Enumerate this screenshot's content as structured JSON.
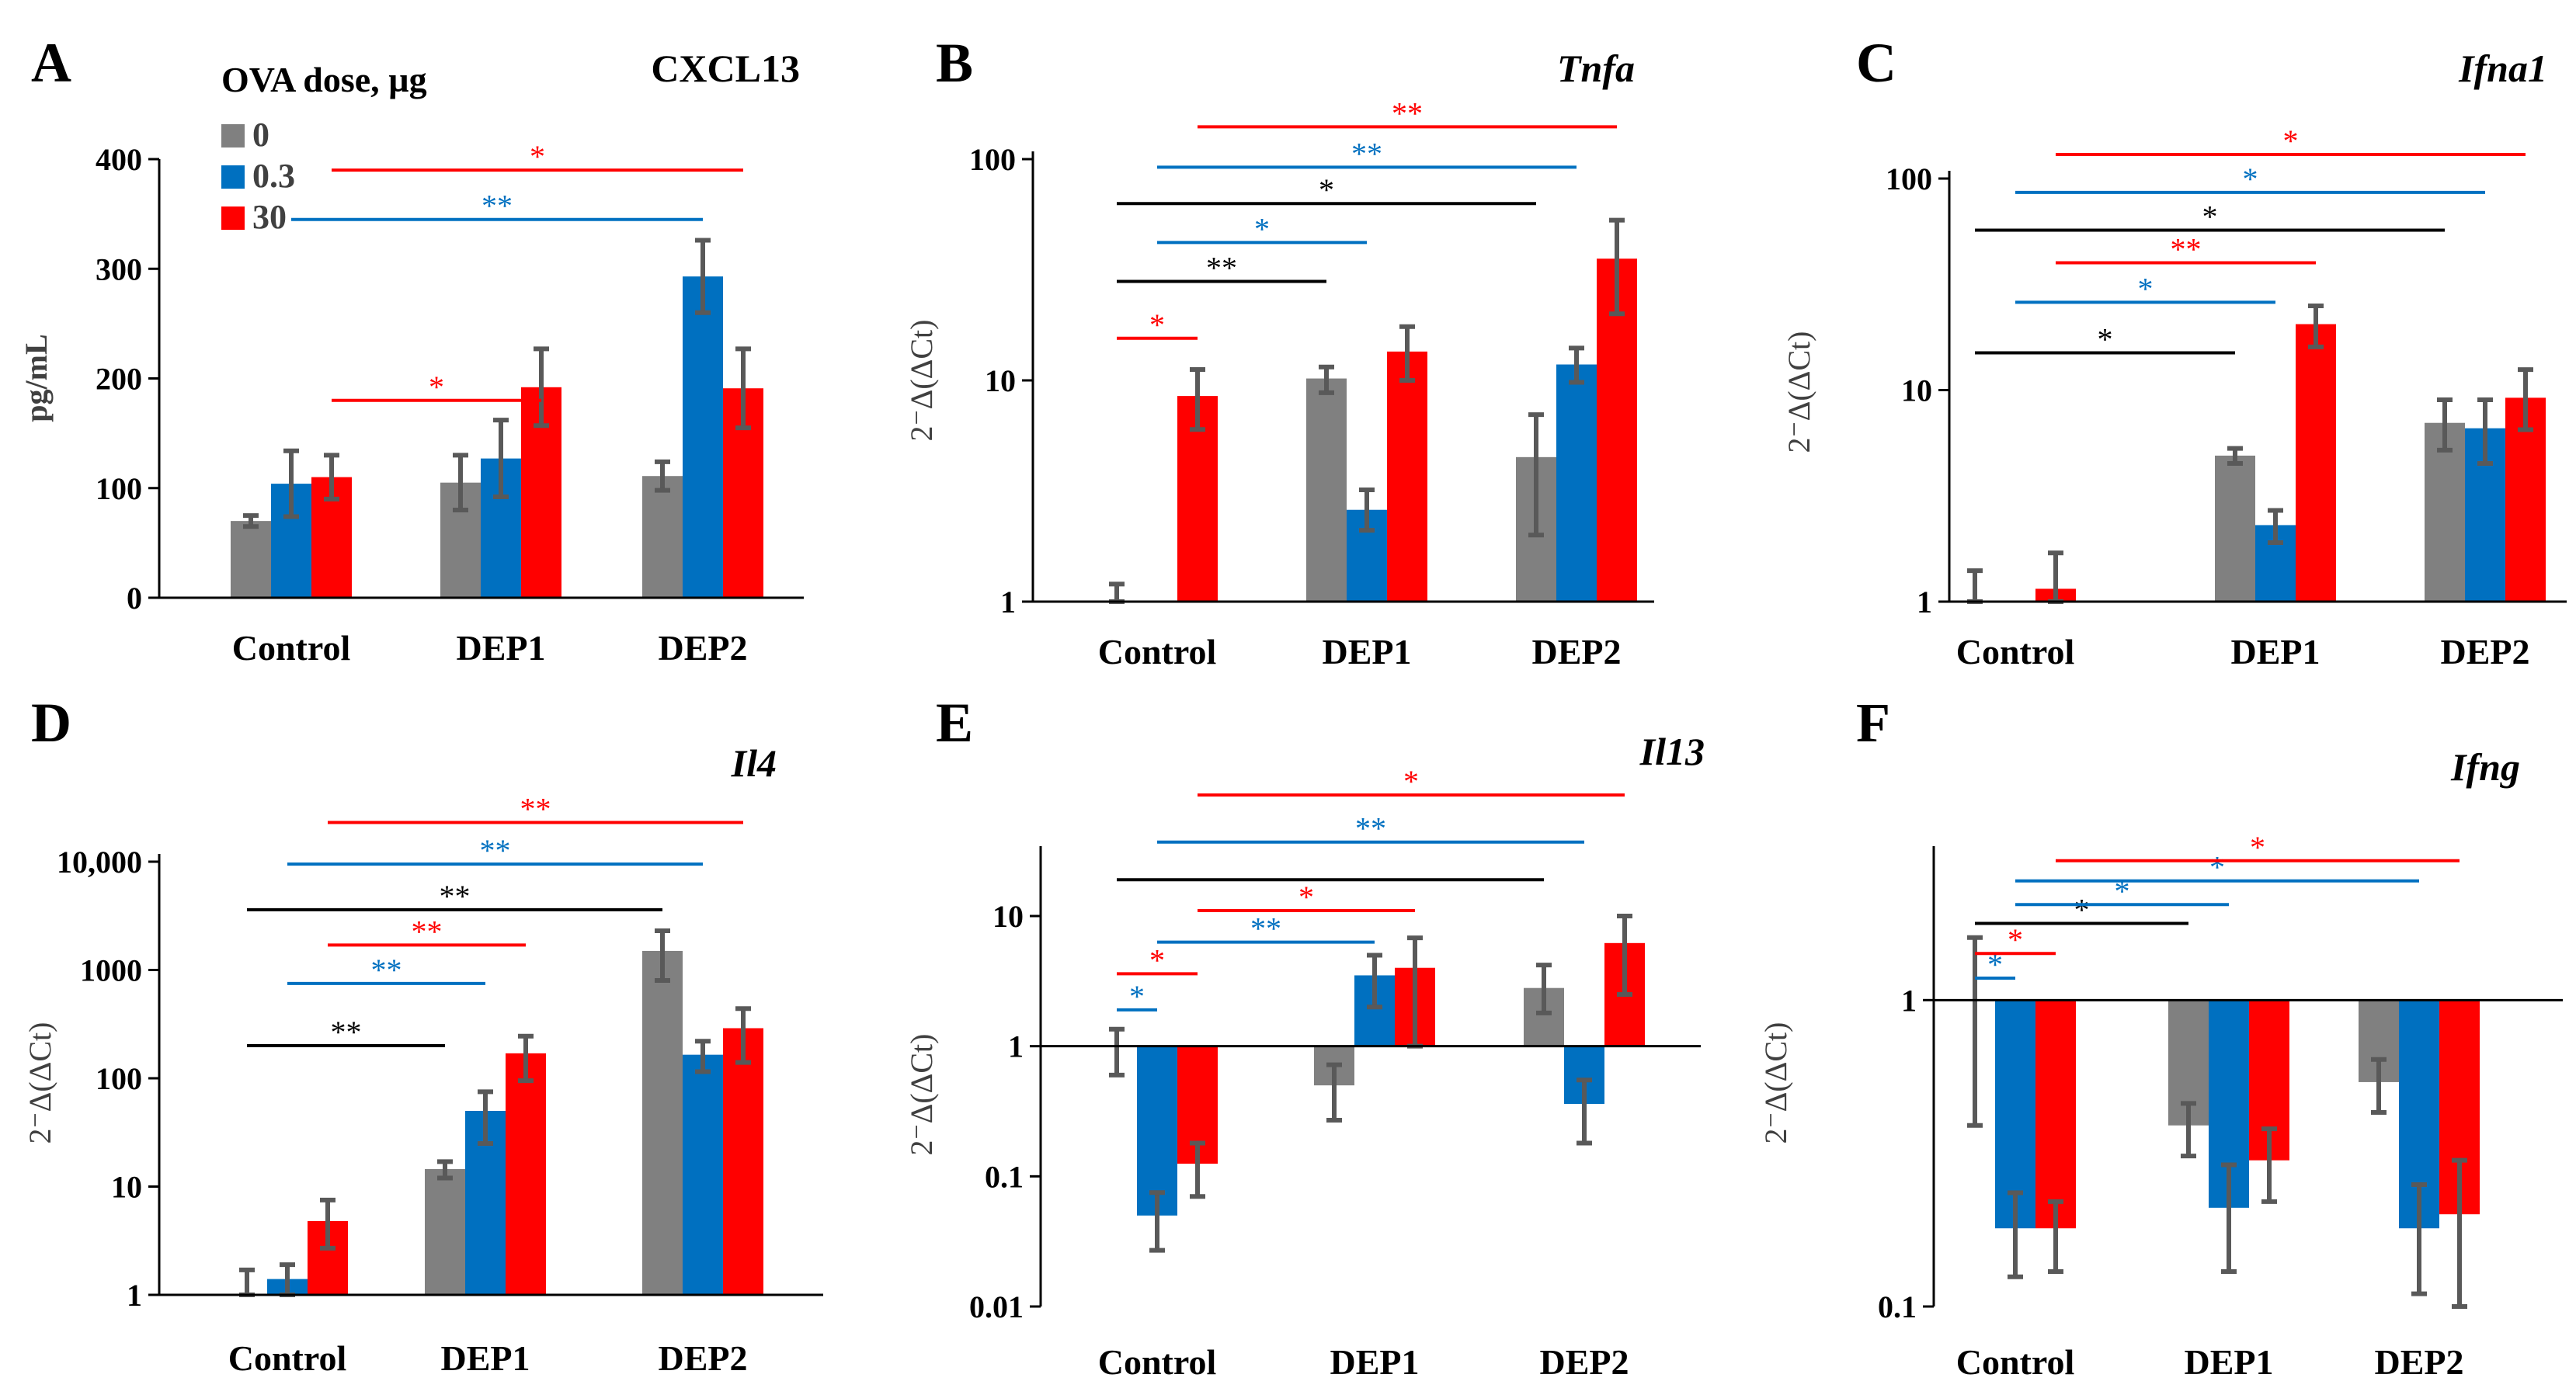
{
  "legend": {
    "title": "OVA dose, µg",
    "entries": [
      {
        "label": "0",
        "color": "#808080"
      },
      {
        "label": "0.3",
        "color": "#0070C0"
      },
      {
        "label": "30",
        "color": "#FF0000"
      }
    ]
  },
  "colors": {
    "gray": "#808080",
    "blue": "#0070C0",
    "red": "#FF0000",
    "sig_gray": "#000000",
    "error": "#595959"
  },
  "chart_data": [
    {
      "panel": "A",
      "type": "bar",
      "title": "CXCL13",
      "title_style": "bold",
      "categories": [
        "Control",
        "DEP1",
        "DEP2"
      ],
      "ylabel": "pg/mL",
      "scale": "linear",
      "ylim": [
        0,
        400
      ],
      "yticks": [
        0,
        100,
        200,
        300,
        400
      ],
      "ytick_labels": [
        "0",
        "100",
        "200",
        "300",
        "400"
      ],
      "series": [
        {
          "name": "0",
          "values": [
            70,
            105,
            111
          ],
          "errors": [
            5,
            25,
            13
          ]
        },
        {
          "name": "0.3",
          "values": [
            104,
            127,
            293
          ],
          "errors": [
            30,
            35,
            33
          ]
        },
        {
          "name": "30",
          "values": [
            110,
            192,
            191
          ],
          "errors": [
            20,
            35,
            36
          ]
        }
      ],
      "significance": [
        {
          "from": [
            0,
            "30"
          ],
          "to": [
            1,
            "30"
          ],
          "label": "*",
          "color": "red",
          "level": 180
        },
        {
          "from": [
            0,
            "0.3"
          ],
          "to": [
            2,
            "0.3"
          ],
          "label": "**",
          "color": "blue",
          "level": 345
        },
        {
          "from": [
            0,
            "30"
          ],
          "to": [
            2,
            "30"
          ],
          "label": "*",
          "color": "red",
          "level": 390
        }
      ]
    },
    {
      "panel": "B",
      "type": "bar",
      "title": "Tnfa",
      "title_style": "italic",
      "categories": [
        "Control",
        "DEP1",
        "DEP2"
      ],
      "ylabel": "2⁻Δ(ΔCt)",
      "scale": "log",
      "ylim": [
        1,
        100
      ],
      "yticks": [
        1,
        10,
        100
      ],
      "ytick_labels": [
        "1",
        "10",
        "100"
      ],
      "series": [
        {
          "name": "0",
          "values": [
            1.0,
            10.2,
            4.5
          ],
          "err_lo": [
            1.0,
            8.8,
            2.0
          ],
          "err_hi": [
            1.2,
            11.5,
            7.0
          ]
        },
        {
          "name": "0.3",
          "values": [
            1.0,
            2.6,
            11.8
          ],
          "err_lo": [
            1.0,
            2.1,
            9.8
          ],
          "err_hi": [
            1.0,
            3.2,
            14.0
          ]
        },
        {
          "name": "30",
          "values": [
            8.5,
            13.5,
            35.5
          ],
          "err_lo": [
            6.0,
            10.0,
            20.0
          ],
          "err_hi": [
            11.2,
            17.5,
            53.0
          ]
        }
      ],
      "significance": [
        {
          "from": [
            0,
            "0"
          ],
          "to": [
            0,
            "30"
          ],
          "label": "*",
          "color": "red",
          "level": 15.5
        },
        {
          "from": [
            0,
            "0"
          ],
          "to": [
            1,
            "0"
          ],
          "label": "**",
          "color": "black",
          "level": 28
        },
        {
          "from": [
            0,
            "0.3"
          ],
          "to": [
            1,
            "0.3"
          ],
          "label": "*",
          "color": "blue",
          "level": 42
        },
        {
          "from": [
            0,
            "0"
          ],
          "to": [
            2,
            "0"
          ],
          "label": "*",
          "color": "black",
          "level": 63
        },
        {
          "from": [
            0,
            "0.3"
          ],
          "to": [
            2,
            "0.3"
          ],
          "label": "**",
          "color": "blue",
          "level": 92
        },
        {
          "from": [
            0,
            "30"
          ],
          "to": [
            2,
            "30"
          ],
          "label": "**",
          "color": "red",
          "level": 140
        }
      ]
    },
    {
      "panel": "C",
      "type": "bar",
      "title": "Ifna1",
      "title_style": "italic",
      "categories": [
        "Control",
        "DEP1",
        "DEP2"
      ],
      "ylabel": "2⁻Δ(ΔCt)",
      "scale": "log",
      "ylim": [
        1,
        100
      ],
      "yticks": [
        1,
        10,
        100
      ],
      "ytick_labels": [
        "1",
        "10",
        "100"
      ],
      "series": [
        {
          "name": "0",
          "values": [
            1.0,
            4.9,
            7.0
          ],
          "err_lo": [
            1.0,
            4.5,
            5.2
          ],
          "err_hi": [
            1.4,
            5.3,
            9.0
          ]
        },
        {
          "name": "0.3",
          "values": [
            1.0,
            2.3,
            6.6
          ],
          "err_lo": [
            1.0,
            1.9,
            4.5
          ],
          "err_hi": [
            1.0,
            2.7,
            9.0
          ]
        },
        {
          "name": "30",
          "values": [
            1.15,
            20.5,
            9.2
          ],
          "err_lo": [
            1.0,
            16.0,
            6.5
          ],
          "err_hi": [
            1.7,
            25.0,
            12.5
          ]
        }
      ],
      "significance": [
        {
          "from": [
            0,
            "0"
          ],
          "to": [
            1,
            "0"
          ],
          "label": "*",
          "color": "black",
          "level": 15
        },
        {
          "from": [
            0,
            "0.3"
          ],
          "to": [
            1,
            "0.3"
          ],
          "label": "*",
          "color": "blue",
          "level": 26
        },
        {
          "from": [
            0,
            "30"
          ],
          "to": [
            1,
            "30"
          ],
          "label": "**",
          "color": "red",
          "level": 40
        },
        {
          "from": [
            0,
            "0"
          ],
          "to": [
            2,
            "0"
          ],
          "label": "*",
          "color": "black",
          "level": 57
        },
        {
          "from": [
            0,
            "0.3"
          ],
          "to": [
            2,
            "0.3"
          ],
          "label": "*",
          "color": "blue",
          "level": 86
        },
        {
          "from": [
            0,
            "30"
          ],
          "to": [
            2,
            "30"
          ],
          "label": "*",
          "color": "red",
          "level": 130
        }
      ]
    },
    {
      "panel": "D",
      "type": "bar",
      "title": "Il4",
      "title_style": "italic",
      "categories": [
        "Control",
        "DEP1",
        "DEP2"
      ],
      "ylabel": "2⁻Δ(ΔCt)",
      "scale": "log",
      "ylim": [
        1,
        10000
      ],
      "yticks": [
        1,
        10,
        100,
        1000,
        10000
      ],
      "ytick_labels": [
        "1",
        "10",
        "100",
        "1000",
        "10,000"
      ],
      "series": [
        {
          "name": "0",
          "values": [
            1.0,
            14.5,
            1500
          ],
          "err_lo": [
            1.0,
            12.0,
            800
          ],
          "err_hi": [
            1.7,
            17.0,
            2300
          ]
        },
        {
          "name": "0.3",
          "values": [
            1.4,
            50,
            165
          ],
          "err_lo": [
            1.0,
            25,
            115
          ],
          "err_hi": [
            1.9,
            75,
            220
          ]
        },
        {
          "name": "30",
          "values": [
            4.8,
            170,
            290
          ],
          "err_lo": [
            2.7,
            95,
            140
          ],
          "err_hi": [
            7.5,
            245,
            440
          ]
        }
      ],
      "significance": [
        {
          "from": [
            0,
            "0"
          ],
          "to": [
            1,
            "0"
          ],
          "label": "**",
          "color": "black",
          "level": 200
        },
        {
          "from": [
            0,
            "0.3"
          ],
          "to": [
            1,
            "0.3"
          ],
          "label": "**",
          "color": "blue",
          "level": 750
        },
        {
          "from": [
            0,
            "30"
          ],
          "to": [
            1,
            "30"
          ],
          "label": "**",
          "color": "red",
          "level": 1700
        },
        {
          "from": [
            0,
            "0"
          ],
          "to": [
            2,
            "0"
          ],
          "label": "**",
          "color": "black",
          "level": 3600
        },
        {
          "from": [
            0,
            "0.3"
          ],
          "to": [
            2,
            "0.3"
          ],
          "label": "**",
          "color": "blue",
          "level": 9500
        },
        {
          "from": [
            0,
            "30"
          ],
          "to": [
            2,
            "30"
          ],
          "label": "**",
          "color": "red",
          "level": 23000
        }
      ]
    },
    {
      "panel": "E",
      "type": "bar",
      "title": "Il13",
      "title_style": "italic",
      "categories": [
        "Control",
        "DEP1",
        "DEP2"
      ],
      "ylabel": "2⁻Δ(ΔCt)",
      "scale": "log",
      "ylim": [
        0.01,
        30
      ],
      "yticks": [
        0.01,
        0.1,
        1,
        10
      ],
      "ytick_labels": [
        "0.01",
        "0.1",
        "1",
        "10"
      ],
      "series": [
        {
          "name": "0",
          "values": [
            1.0,
            0.5,
            2.8
          ],
          "err_lo": [
            0.6,
            0.27,
            1.8
          ],
          "err_hi": [
            1.35,
            0.72,
            4.2
          ]
        },
        {
          "name": "0.3",
          "values": [
            0.05,
            3.5,
            0.36
          ],
          "err_lo": [
            0.027,
            2.0,
            0.18
          ],
          "err_hi": [
            0.075,
            5.0,
            0.55
          ]
        },
        {
          "name": "30",
          "values": [
            0.125,
            4.0,
            6.2
          ],
          "err_lo": [
            0.07,
            1.0,
            2.5
          ],
          "err_hi": [
            0.18,
            6.8,
            10.0
          ]
        }
      ],
      "significance": [
        {
          "from": [
            0,
            "0"
          ],
          "to": [
            0,
            "0.3"
          ],
          "label": "*",
          "color": "blue",
          "level": 1.9
        },
        {
          "from": [
            0,
            "0"
          ],
          "to": [
            0,
            "30"
          ],
          "label": "*",
          "color": "red",
          "level": 3.6
        },
        {
          "from": [
            0,
            "0.3"
          ],
          "to": [
            1,
            "0.3"
          ],
          "label": "**",
          "color": "blue",
          "level": 6.3
        },
        {
          "from": [
            0,
            "30"
          ],
          "to": [
            1,
            "30"
          ],
          "label": "*",
          "color": "red",
          "level": 11
        },
        {
          "from": [
            0,
            "0"
          ],
          "to": [
            2,
            "0"
          ],
          "label": "",
          "color": "black",
          "level": 19
        },
        {
          "from": [
            0,
            "0.3"
          ],
          "to": [
            2,
            "0.3"
          ],
          "label": "**",
          "color": "blue",
          "level": 37
        },
        {
          "from": [
            0,
            "30"
          ],
          "to": [
            2,
            "30"
          ],
          "label": "*",
          "color": "red",
          "level": 85
        }
      ]
    },
    {
      "panel": "F",
      "type": "bar",
      "title": "Ifng",
      "title_style": "italic",
      "categories": [
        "Control",
        "DEP1",
        "DEP2"
      ],
      "ylabel": "2⁻Δ(ΔCt)",
      "scale": "log",
      "ylim": [
        0.1,
        3
      ],
      "yticks": [
        0.1,
        1
      ],
      "ytick_labels": [
        "0.1",
        "1"
      ],
      "series": [
        {
          "name": "0",
          "values": [
            1.0,
            0.39,
            0.54
          ],
          "err_lo": [
            0.39,
            0.31,
            0.43
          ],
          "err_hi": [
            1.6,
            0.46,
            0.64
          ]
        },
        {
          "name": "0.3",
          "values": [
            0.18,
            0.21,
            0.18
          ],
          "err_lo": [
            0.125,
            0.13,
            0.11
          ],
          "err_hi": [
            0.235,
            0.29,
            0.25
          ]
        },
        {
          "name": "30",
          "values": [
            0.18,
            0.3,
            0.2
          ],
          "err_lo": [
            0.13,
            0.22,
            0.1
          ],
          "err_hi": [
            0.22,
            0.38,
            0.3
          ]
        }
      ],
      "significance": [
        {
          "from": [
            0,
            "0"
          ],
          "to": [
            0,
            "0.3"
          ],
          "label": "*",
          "color": "blue",
          "level": 1.18
        },
        {
          "from": [
            0,
            "0"
          ],
          "to": [
            0,
            "30"
          ],
          "label": "*",
          "color": "red",
          "level": 1.42
        },
        {
          "from": [
            0,
            "0"
          ],
          "to": [
            1,
            "0"
          ],
          "label": "*",
          "color": "black",
          "level": 1.78
        },
        {
          "from": [
            0,
            "0.3"
          ],
          "to": [
            1,
            "0.3"
          ],
          "label": "*",
          "color": "blue",
          "level": 2.05
        },
        {
          "from": [
            0,
            "0.3"
          ],
          "to": [
            2,
            "0.3"
          ],
          "label": "*",
          "color": "blue",
          "level": 2.45
        },
        {
          "from": [
            0,
            "30"
          ],
          "to": [
            2,
            "30"
          ],
          "label": "*",
          "color": "red",
          "level": 2.85
        }
      ]
    }
  ]
}
